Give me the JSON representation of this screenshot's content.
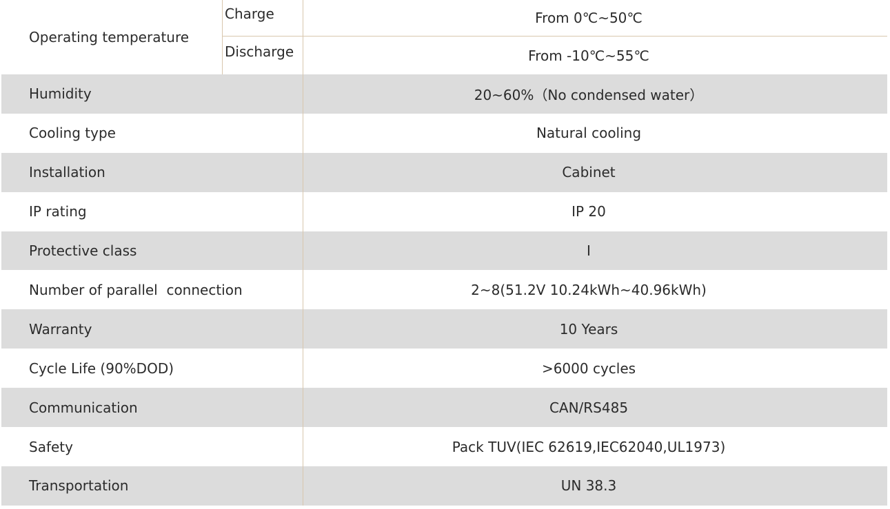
{
  "table": {
    "operating_temperature": {
      "label": "Operating temperature",
      "sub_rows": [
        [
          "Charge",
          "From 0℃~50℃"
        ],
        [
          "Discharge",
          "From -10℃~55℃"
        ]
      ]
    },
    "rows": [
      [
        "Humidity",
        "20~60%（No condensed water）"
      ],
      [
        "Cooling type",
        "Natural cooling"
      ],
      [
        "Installation",
        "Cabinet"
      ],
      [
        "IP rating",
        "IP 20"
      ],
      [
        "Protective class",
        "I"
      ],
      [
        "Number of parallel  connection",
        "2~8(51.2V 10.24kWh~40.96kWh)"
      ],
      [
        "Warranty",
        "10 Years"
      ],
      [
        "Cycle Life (90%DOD)",
        ">6000 cycles"
      ],
      [
        "Communication",
        "CAN/RS485"
      ],
      [
        "Safety",
        "Pack TUV(IEC 62619,IEC62040,UL1973)"
      ],
      [
        "Transportation",
        "UN 38.3"
      ]
    ]
  }
}
